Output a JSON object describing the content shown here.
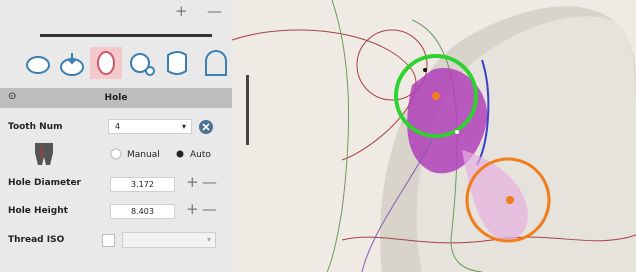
{
  "toolbar": {
    "plus": "+",
    "minus": "—"
  },
  "section": {
    "title": "Hole"
  },
  "fields": {
    "tooth_num": {
      "label": "Tooth Num",
      "value": "4"
    },
    "mode": {
      "manual": "Manual",
      "auto": "Auto"
    },
    "hole_diameter": {
      "label": "Hole Diameter",
      "value": "3.172"
    },
    "hole_height": {
      "label": "Hole Height",
      "value": "8.403"
    },
    "thread_iso": {
      "label": "Thread ISO"
    }
  }
}
